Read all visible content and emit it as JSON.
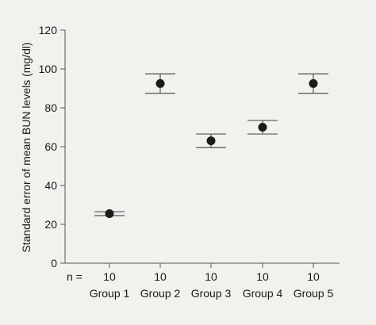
{
  "chart_data": {
    "type": "scatter",
    "title": "",
    "xlabel": "",
    "ylabel": "Standard error of mean BUN levels (mg/dl)",
    "ylim": [
      0,
      120
    ],
    "yticks": [
      0,
      20,
      40,
      60,
      80,
      100,
      120
    ],
    "categories": [
      "Group 1",
      "Group 2",
      "Group 3",
      "Group 4",
      "Group 5"
    ],
    "n_label": "n =",
    "n_values": [
      "10",
      "10",
      "10",
      "10",
      "10"
    ],
    "series": [
      {
        "values": [
          25.5,
          92.5,
          63,
          70,
          92.5
        ],
        "error_low": [
          24.5,
          87.5,
          59.5,
          66.5,
          87.5
        ],
        "error_high": [
          26.5,
          97.5,
          66.5,
          73.5,
          97.5
        ]
      }
    ],
    "grid": false,
    "legend": "none"
  },
  "colors": {
    "background": "#f3f1ee",
    "axis": "#555555",
    "marker": "#1a1a1a",
    "text": "#1a1a1a"
  }
}
